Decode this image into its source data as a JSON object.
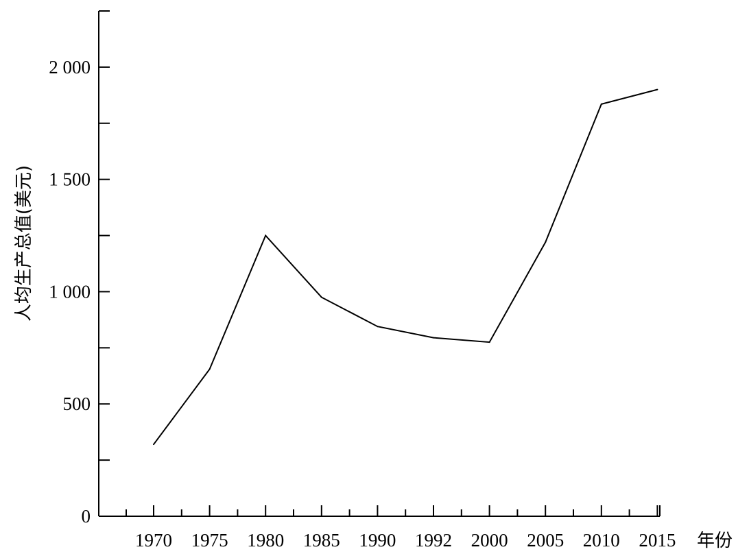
{
  "chart_data": {
    "type": "line",
    "title": "",
    "xlabel": "年份",
    "ylabel": "人均生产总值(美元)",
    "categories": [
      "1970",
      "1975",
      "1980",
      "1985",
      "1990",
      "1992",
      "2000",
      "2005",
      "2010",
      "2015"
    ],
    "series": [
      {
        "values": [
          320,
          655,
          1250,
          975,
          845,
          795,
          775,
          1220,
          1835,
          1900
        ]
      }
    ],
    "ylim": [
      0,
      2250
    ],
    "yticks": [
      0,
      500,
      1000,
      1500,
      2000
    ],
    "ytick_labels": [
      "0",
      "500",
      "1 000",
      "1 500",
      "2 000"
    ],
    "y_minor_ticks": [
      250,
      750,
      1250,
      1750,
      2250
    ],
    "grid": false,
    "line_color": "#000000"
  }
}
